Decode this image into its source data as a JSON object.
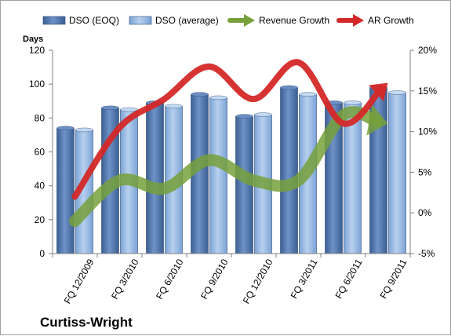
{
  "chart_data": {
    "type": "bar",
    "categories": [
      "FQ 12/2009",
      "FQ 3/2010",
      "FQ 6/2010",
      "FQ 9/2010",
      "FQ 12/2010",
      "FQ 3/2011",
      "FQ 6/2011",
      "FQ 9/2011"
    ],
    "series": [
      {
        "name": "DSO (EOQ)",
        "kind": "bar",
        "axis": "left",
        "color": "#4a6fa5",
        "values": [
          74,
          86,
          89,
          94,
          81,
          98,
          89,
          98
        ]
      },
      {
        "name": "DSO (average)",
        "kind": "bar",
        "axis": "left",
        "color": "#8db3e2",
        "values": [
          73,
          85,
          87,
          92,
          82,
          94,
          89,
          95
        ]
      },
      {
        "name": "Revenue Growth",
        "kind": "arrow-line",
        "axis": "right",
        "color": "#77a03b",
        "values": [
          -1,
          4,
          3,
          6.5,
          4,
          4,
          12,
          11
        ]
      },
      {
        "name": "AR Growth",
        "kind": "arrow-line",
        "axis": "right",
        "color": "#d42828",
        "values": [
          2,
          10.5,
          14,
          18,
          14,
          18.5,
          11,
          16
        ]
      }
    ],
    "ylabel": "Days",
    "ylim": [
      0,
      120
    ],
    "yticks": [
      0,
      20,
      40,
      60,
      80,
      100,
      120
    ],
    "y2lim": [
      -5,
      20
    ],
    "y2ticks": [
      "-5%",
      "0%",
      "5%",
      "10%",
      "15%",
      "20%"
    ],
    "y2tick_values": [
      -5,
      0,
      5,
      10,
      15,
      20
    ],
    "legend_position": "top",
    "grid": false,
    "plot_background": "#ffffff",
    "company": "Curtiss-Wright"
  }
}
